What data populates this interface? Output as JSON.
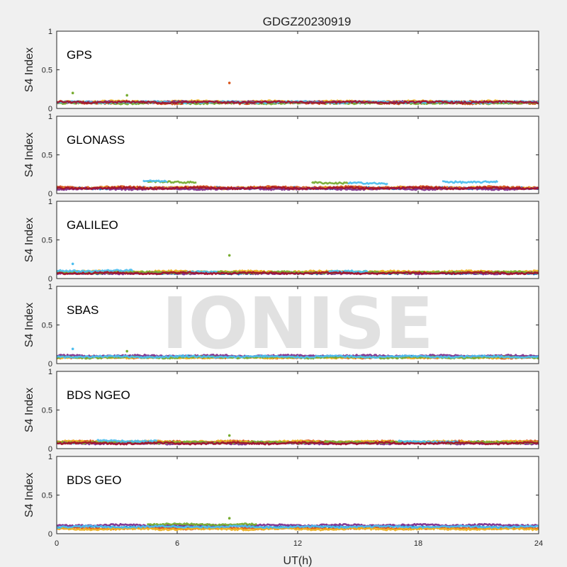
{
  "figure_title": "GDGZ20230919",
  "watermark": "IONISE",
  "xlabel": "UT(h)",
  "colors": [
    "#0072BD",
    "#D95319",
    "#EDB120",
    "#7E2F8E",
    "#77AC30",
    "#4DBEEE",
    "#A2142F"
  ],
  "chart_data": [
    {
      "type": "scatter",
      "panel_label": "GPS",
      "ylabel": "S4 Index",
      "xlim": [
        0,
        24
      ],
      "ylim": [
        0,
        1
      ],
      "xticks": [
        "0",
        "6",
        "12",
        "18",
        "24"
      ],
      "yticks": [
        "0",
        "0.5",
        "1"
      ],
      "series": [
        {
          "color": "#0072BD",
          "segments": [
            {
              "x0": 0.0,
              "x1": 24.0,
              "y": 0.08
            }
          ]
        },
        {
          "color": "#D95319",
          "segments": [
            {
              "x0": 0.0,
              "x1": 24.0,
              "y": 0.07
            }
          ]
        },
        {
          "color": "#EDB120",
          "segments": [
            {
              "x0": 0.0,
              "x1": 24.0,
              "y": 0.09
            }
          ]
        },
        {
          "color": "#7E2F8E",
          "segments": [
            {
              "x0": 0.0,
              "x1": 24.0,
              "y": 0.08
            }
          ]
        },
        {
          "color": "#77AC30",
          "segments": [
            {
              "x0": 0.0,
              "x1": 24.0,
              "y": 0.07
            }
          ]
        },
        {
          "color": "#4DBEEE",
          "segments": [
            {
              "x0": 0.0,
              "x1": 24.0,
              "y": 0.08
            }
          ]
        },
        {
          "color": "#A2142F",
          "segments": [
            {
              "x0": 0.0,
              "x1": 24.0,
              "y": 0.08
            }
          ]
        }
      ],
      "outliers": [
        {
          "x": 0.8,
          "y": 0.2,
          "color": "#77AC30"
        },
        {
          "x": 3.5,
          "y": 0.17,
          "color": "#77AC30"
        },
        {
          "x": 8.6,
          "y": 0.33,
          "color": "#D95319"
        }
      ]
    },
    {
      "type": "scatter",
      "panel_label": "GLONASS",
      "ylabel": "S4 Index",
      "xlim": [
        0,
        24
      ],
      "ylim": [
        0,
        1
      ],
      "xticks": [
        "0",
        "6",
        "12",
        "18",
        "24"
      ],
      "yticks": [
        "0",
        "0.5",
        "1"
      ],
      "series": [
        {
          "color": "#0072BD",
          "segments": [
            {
              "x0": 0.0,
              "x1": 24.0,
              "y": 0.07
            }
          ]
        },
        {
          "color": "#D95319",
          "segments": [
            {
              "x0": 0.0,
              "x1": 24.0,
              "y": 0.08
            }
          ]
        },
        {
          "color": "#EDB120",
          "segments": [
            {
              "x0": 0.0,
              "x1": 24.0,
              "y": 0.07
            }
          ]
        },
        {
          "color": "#7E2F8E",
          "segments": [
            {
              "x0": 0.0,
              "x1": 24.0,
              "y": 0.06
            }
          ]
        },
        {
          "color": "#77AC30",
          "segments": [
            {
              "x0": 4.5,
              "x1": 7.0,
              "y": 0.15
            },
            {
              "x0": 12.7,
              "x1": 14.5,
              "y": 0.14
            }
          ]
        },
        {
          "color": "#4DBEEE",
          "segments": [
            {
              "x0": 4.3,
              "x1": 5.5,
              "y": 0.16
            },
            {
              "x0": 14.5,
              "x1": 16.5,
              "y": 0.13
            },
            {
              "x0": 19.2,
              "x1": 22.0,
              "y": 0.15
            }
          ]
        },
        {
          "color": "#A2142F",
          "segments": [
            {
              "x0": 0.0,
              "x1": 24.0,
              "y": 0.07
            }
          ]
        }
      ],
      "outliers": []
    },
    {
      "type": "scatter",
      "panel_label": "GALILEO",
      "ylabel": "S4 Index",
      "xlim": [
        0,
        24
      ],
      "ylim": [
        0,
        1
      ],
      "xticks": [
        "0",
        "6",
        "12",
        "18",
        "24"
      ],
      "yticks": [
        "0",
        "0.5",
        "1"
      ],
      "series": [
        {
          "color": "#0072BD",
          "segments": [
            {
              "x0": 0.0,
              "x1": 24.0,
              "y": 0.07
            }
          ]
        },
        {
          "color": "#D95319",
          "segments": [
            {
              "x0": 0.0,
              "x1": 24.0,
              "y": 0.08
            }
          ]
        },
        {
          "color": "#EDB120",
          "segments": [
            {
              "x0": 0.0,
              "x1": 24.0,
              "y": 0.09
            }
          ]
        },
        {
          "color": "#7E2F8E",
          "segments": [
            {
              "x0": 0.0,
              "x1": 24.0,
              "y": 0.07
            }
          ]
        },
        {
          "color": "#77AC30",
          "segments": [
            {
              "x0": 0.0,
              "x1": 24.0,
              "y": 0.08
            }
          ]
        },
        {
          "color": "#4DBEEE",
          "segments": [
            {
              "x0": 0.0,
              "x1": 3.8,
              "y": 0.1
            },
            {
              "x0": 6.5,
              "x1": 8.0,
              "y": 0.08
            },
            {
              "x0": 13.5,
              "x1": 15.5,
              "y": 0.09
            }
          ]
        },
        {
          "color": "#A2142F",
          "segments": [
            {
              "x0": 0.0,
              "x1": 24.0,
              "y": 0.07
            }
          ]
        }
      ],
      "outliers": [
        {
          "x": 0.8,
          "y": 0.19,
          "color": "#4DBEEE"
        },
        {
          "x": 8.6,
          "y": 0.3,
          "color": "#77AC30"
        }
      ]
    },
    {
      "type": "scatter",
      "panel_label": "SBAS",
      "ylabel": "S4 Index",
      "xlim": [
        0,
        24
      ],
      "ylim": [
        0,
        1
      ],
      "xticks": [
        "0",
        "6",
        "12",
        "18",
        "24"
      ],
      "yticks": [
        "0",
        "0.5",
        "1"
      ],
      "series": [
        {
          "color": "#0072BD",
          "segments": [
            {
              "x0": 0.0,
              "x1": 24.0,
              "y": 0.09
            }
          ]
        },
        {
          "color": "#D95319",
          "segments": [
            {
              "x0": 0.0,
              "x1": 24.0,
              "y": 0.08
            }
          ]
        },
        {
          "color": "#EDB120",
          "segments": [
            {
              "x0": 0.0,
              "x1": 24.0,
              "y": 0.08
            }
          ]
        },
        {
          "color": "#7E2F8E",
          "segments": [
            {
              "x0": 0.0,
              "x1": 24.0,
              "y": 0.1
            }
          ]
        },
        {
          "color": "#77AC30",
          "segments": [
            {
              "x0": 0.0,
              "x1": 24.0,
              "y": 0.08
            }
          ]
        },
        {
          "color": "#4DBEEE",
          "segments": [
            {
              "x0": 0.0,
              "x1": 24.0,
              "y": 0.09
            }
          ]
        },
        {
          "color": "#A2142F",
          "segments": []
        }
      ],
      "outliers": [
        {
          "x": 0.8,
          "y": 0.19,
          "color": "#4DBEEE"
        },
        {
          "x": 3.5,
          "y": 0.16,
          "color": "#77AC30"
        }
      ]
    },
    {
      "type": "scatter",
      "panel_label": "BDS NGEO",
      "ylabel": "S4 Index",
      "xlim": [
        0,
        24
      ],
      "ylim": [
        0,
        1
      ],
      "xticks": [
        "0",
        "6",
        "12",
        "18",
        "24"
      ],
      "yticks": [
        "0",
        "0.5",
        "1"
      ],
      "series": [
        {
          "color": "#0072BD",
          "segments": [
            {
              "x0": 0.0,
              "x1": 24.0,
              "y": 0.08
            }
          ]
        },
        {
          "color": "#D95319",
          "segments": [
            {
              "x0": 0.0,
              "x1": 24.0,
              "y": 0.09
            }
          ]
        },
        {
          "color": "#EDB120",
          "segments": [
            {
              "x0": 0.0,
              "x1": 24.0,
              "y": 0.09
            }
          ]
        },
        {
          "color": "#7E2F8E",
          "segments": [
            {
              "x0": 0.0,
              "x1": 24.0,
              "y": 0.07
            }
          ]
        },
        {
          "color": "#77AC30",
          "segments": [
            {
              "x0": 0.0,
              "x1": 24.0,
              "y": 0.08
            }
          ]
        },
        {
          "color": "#4DBEEE",
          "segments": [
            {
              "x0": 2.0,
              "x1": 5.0,
              "y": 0.1
            },
            {
              "x0": 17.0,
              "x1": 20.0,
              "y": 0.09
            }
          ]
        },
        {
          "color": "#A2142F",
          "segments": [
            {
              "x0": 0.0,
              "x1": 24.0,
              "y": 0.07
            }
          ]
        }
      ],
      "outliers": [
        {
          "x": 8.6,
          "y": 0.17,
          "color": "#77AC30"
        }
      ]
    },
    {
      "type": "scatter",
      "panel_label": "BDS GEO",
      "ylabel": "S4 Index",
      "xlim": [
        0,
        24
      ],
      "ylim": [
        0,
        1
      ],
      "xticks": [
        "0",
        "6",
        "12",
        "18",
        "24"
      ],
      "yticks": [
        "0",
        "0.5",
        "1"
      ],
      "series": [
        {
          "color": "#0072BD",
          "segments": [
            {
              "x0": 0.0,
              "x1": 24.0,
              "y": 0.09
            }
          ]
        },
        {
          "color": "#D95319",
          "segments": [
            {
              "x0": 0.0,
              "x1": 24.0,
              "y": 0.07
            }
          ]
        },
        {
          "color": "#EDB120",
          "segments": [
            {
              "x0": 0.0,
              "x1": 24.0,
              "y": 0.06
            }
          ]
        },
        {
          "color": "#7E2F8E",
          "segments": [
            {
              "x0": 0.0,
              "x1": 24.0,
              "y": 0.11
            }
          ]
        },
        {
          "color": "#77AC30",
          "segments": [
            {
              "x0": 4.5,
              "x1": 10.0,
              "y": 0.12
            }
          ]
        },
        {
          "color": "#4DBEEE",
          "segments": [
            {
              "x0": 0.0,
              "x1": 24.0,
              "y": 0.09
            }
          ]
        },
        {
          "color": "#A2142F",
          "segments": []
        }
      ],
      "outliers": [
        {
          "x": 8.6,
          "y": 0.2,
          "color": "#77AC30"
        }
      ]
    }
  ]
}
